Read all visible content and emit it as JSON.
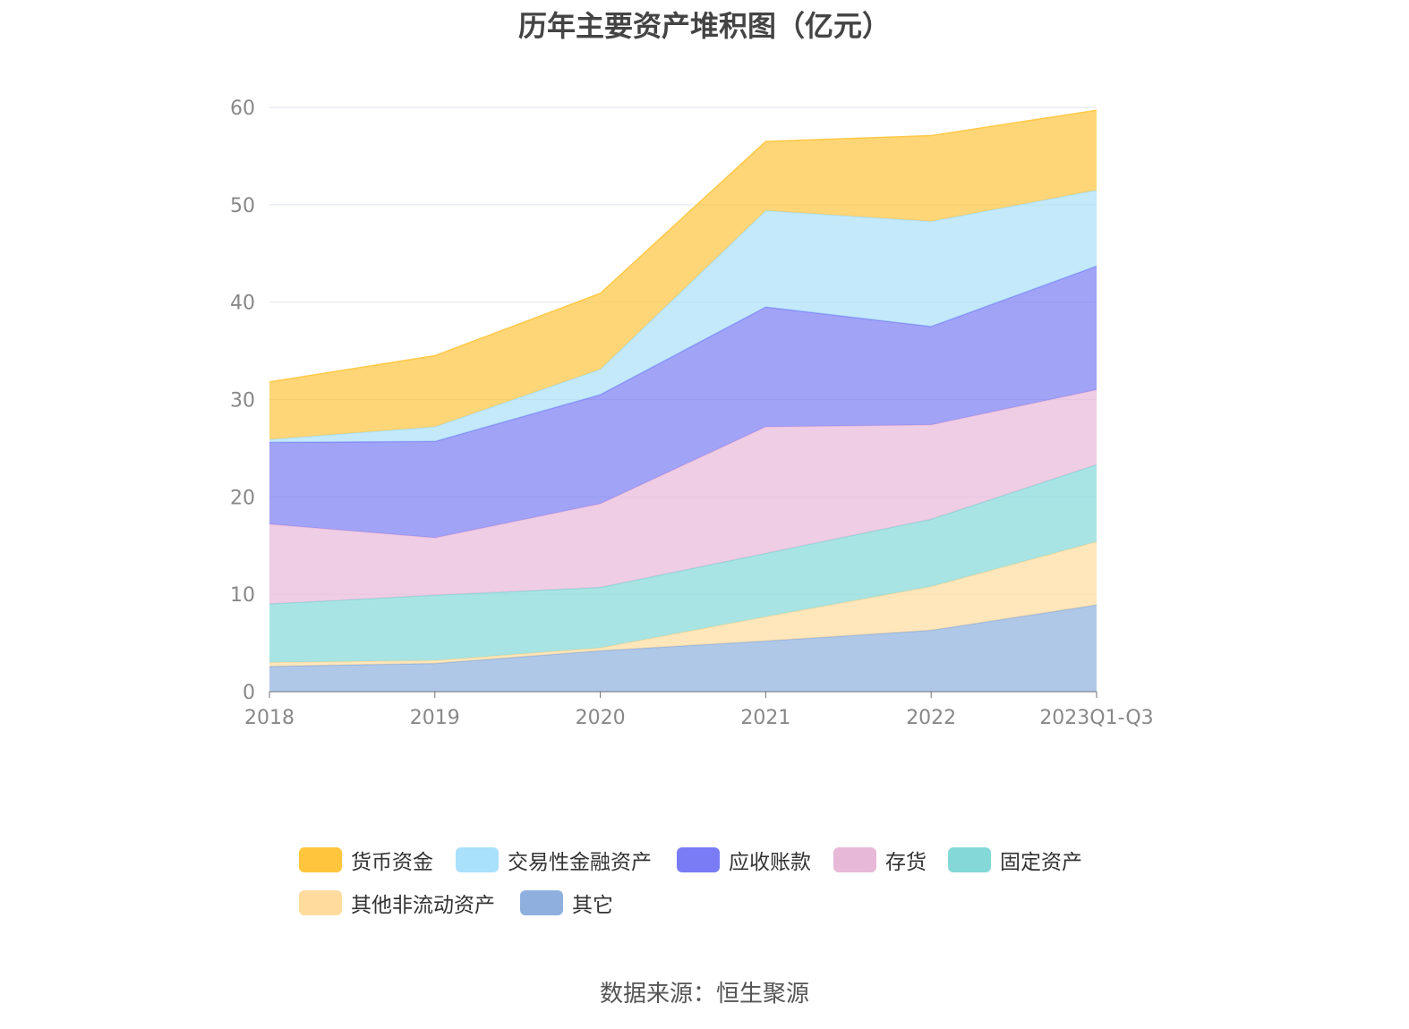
{
  "title": "历年主要资产堆积图（亿元）",
  "source": "数据来源：恒生聚源",
  "chart_data": {
    "type": "area",
    "stacked": true,
    "title": "历年主要资产堆积图（亿元）",
    "xlabel": "",
    "ylabel": "",
    "ylim": [
      0,
      60
    ],
    "yticks": [
      0,
      10,
      20,
      30,
      40,
      50,
      60
    ],
    "grid": true,
    "legend_position": "bottom",
    "categories": [
      "2018",
      "2019",
      "2020",
      "2021",
      "2022",
      "2023Q1-Q3"
    ],
    "series": [
      {
        "name": "其它",
        "color": "#8fb0de",
        "values": [
          2.6,
          2.9,
          4.2,
          5.2,
          6.3,
          8.9
        ]
      },
      {
        "name": "其他非流动资产",
        "color": "#ffdc9e",
        "values": [
          0.4,
          0.3,
          0.3,
          2.5,
          4.5,
          6.5
        ]
      },
      {
        "name": "固定资产",
        "color": "#84d8d8",
        "values": [
          6.0,
          6.7,
          6.2,
          6.5,
          6.9,
          7.9
        ]
      },
      {
        "name": "存货",
        "color": "#e8b8d8",
        "values": [
          8.2,
          5.9,
          8.6,
          13.0,
          9.7,
          7.7
        ]
      },
      {
        "name": "应收账款",
        "color": "#797cf4",
        "values": [
          8.4,
          9.9,
          11.2,
          12.3,
          10.1,
          12.7
        ]
      },
      {
        "name": "交易性金融资产",
        "color": "#a9e0fa",
        "values": [
          0.3,
          1.5,
          2.6,
          9.9,
          10.8,
          7.8
        ]
      },
      {
        "name": "货币资金",
        "color": "#ffc53d",
        "values": [
          5.9,
          7.3,
          7.8,
          7.1,
          8.8,
          8.2
        ]
      }
    ],
    "legend_order": [
      "货币资金",
      "交易性金融资产",
      "应收账款",
      "存货",
      "固定资产",
      "其他非流动资产",
      "其它"
    ]
  }
}
